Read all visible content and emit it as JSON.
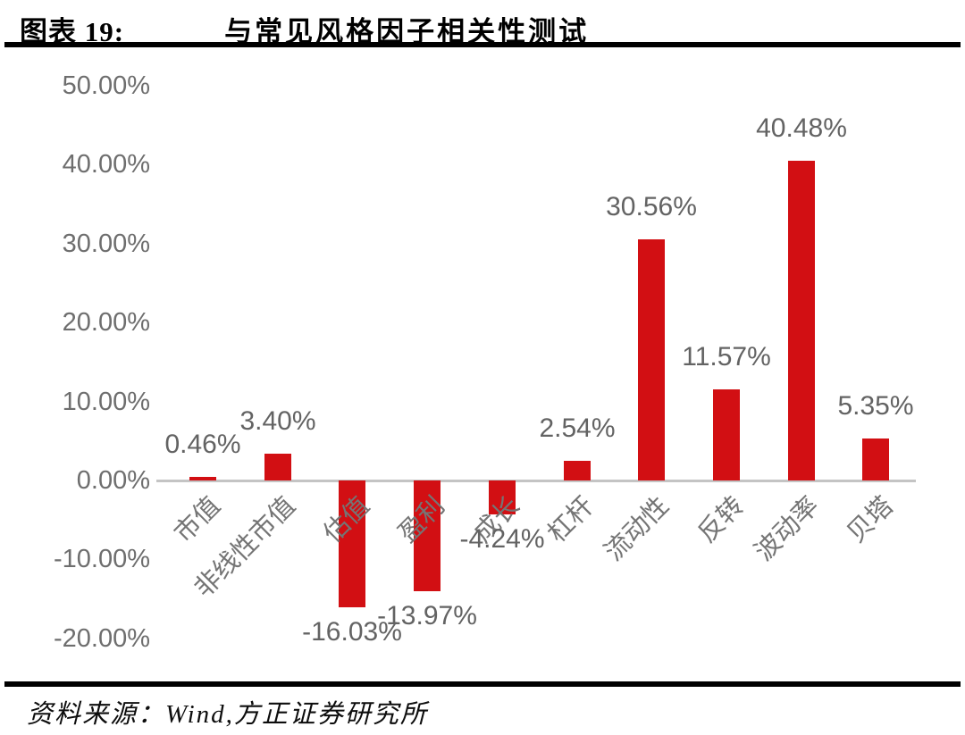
{
  "header": {
    "figure_label": "图表 19:",
    "title": "与常见风格因子相关性测试"
  },
  "chart_data": {
    "type": "bar",
    "title": "与常见风格因子相关性测试",
    "categories": [
      "市值",
      "非线性市值",
      "估值",
      "盈利",
      "成长",
      "杠杆",
      "流动性",
      "反转",
      "波动率",
      "贝塔"
    ],
    "values": [
      0.46,
      3.4,
      -16.03,
      -13.97,
      -4.24,
      2.54,
      30.56,
      11.57,
      40.48,
      5.35
    ],
    "value_labels": [
      "0.46%",
      "3.40%",
      "-16.03%",
      "-13.97%",
      "-4.24%",
      "2.54%",
      "30.56%",
      "11.57%",
      "40.48%",
      "5.35%"
    ],
    "y_axis": {
      "tick_values": [
        50,
        40,
        30,
        20,
        10,
        0,
        -10,
        -20
      ],
      "tick_labels": [
        "50.00%",
        "40.00%",
        "30.00%",
        "20.00%",
        "10.00%",
        "0.00%",
        "-10.00%",
        "-20.00%"
      ],
      "ylim": [
        -20,
        50
      ]
    },
    "bar_color": "#d20f13",
    "axis_line_color": "#c4c4c4",
    "grid": false,
    "legend": null
  },
  "footer": {
    "source_label": "资料来源：",
    "source_text": "Wind,方正证券研究所"
  }
}
